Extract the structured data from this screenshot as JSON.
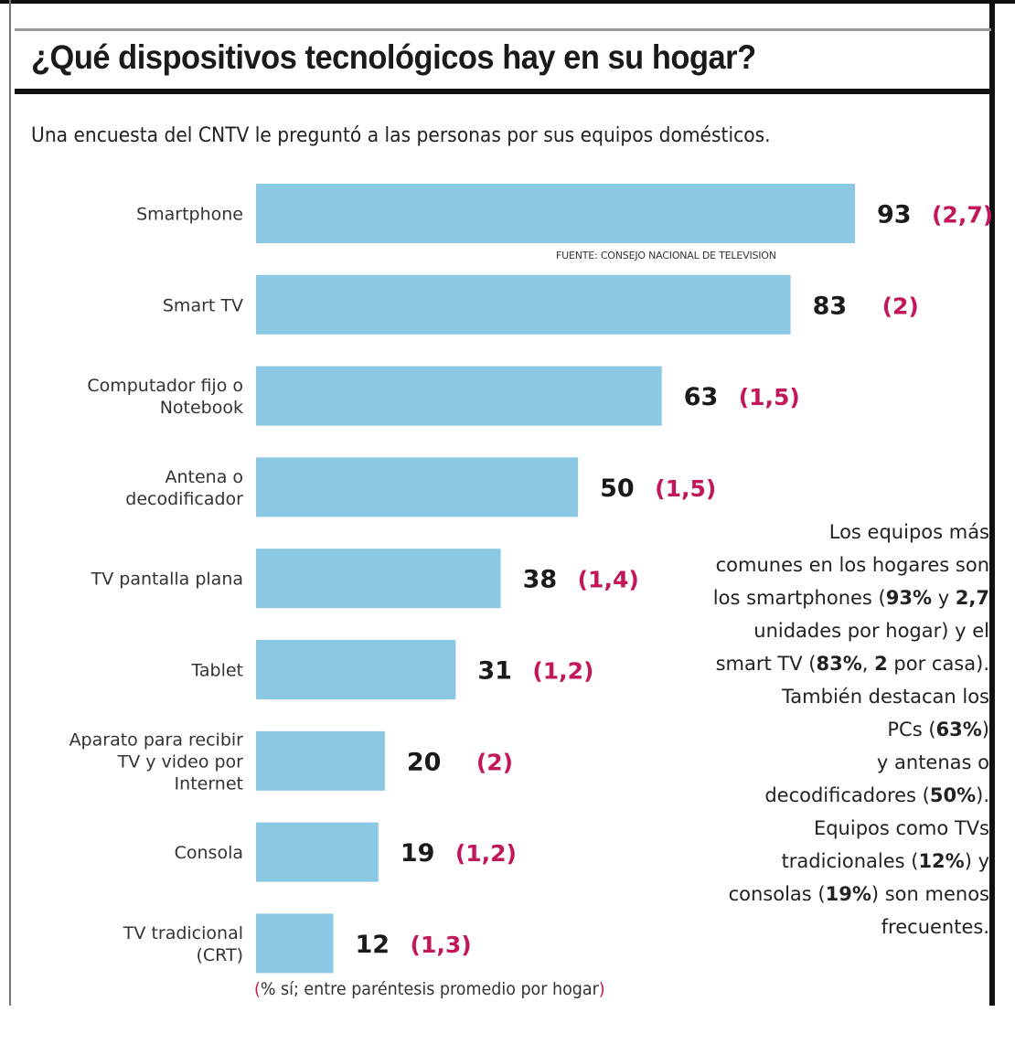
{
  "header": {
    "title": "¿Qué dispositivos tecnológicos hay en su hogar?",
    "subtitle": "Una encuesta del CNTV le preguntó a las personas por sus equipos domésticos."
  },
  "source": "FUENTE: CONSEJO NACIONAL DE TELEVISION",
  "note": {
    "open": "(",
    "text": "% sí; entre paréntesis promedio por hogar",
    "close": ")"
  },
  "commentary": [
    [
      {
        "t": "Los equipos más"
      }
    ],
    [
      {
        "t": "comunes en los hogares son"
      }
    ],
    [
      {
        "t": "los smartphones ("
      },
      {
        "t": "93%",
        "b": true
      },
      {
        "t": " y "
      },
      {
        "t": "2,7",
        "b": true
      }
    ],
    [
      {
        "t": "unidades por hogar) y el"
      }
    ],
    [
      {
        "t": "smart TV ("
      },
      {
        "t": "83%",
        "b": true
      },
      {
        "t": ", "
      },
      {
        "t": "2",
        "b": true
      },
      {
        "t": " por casa)."
      }
    ],
    [
      {
        "t": "También destacan los"
      }
    ],
    [
      {
        "t": "PCs ("
      },
      {
        "t": "63%",
        "b": true
      },
      {
        "t": ")"
      }
    ],
    [
      {
        "t": "y antenas o"
      }
    ],
    [
      {
        "t": "decodificadores ("
      },
      {
        "t": "50%",
        "b": true
      },
      {
        "t": ")."
      }
    ],
    [
      {
        "t": "Equipos como TVs"
      }
    ],
    [
      {
        "t": "tradicionales ("
      },
      {
        "t": "12%",
        "b": true
      },
      {
        "t": ") y"
      }
    ],
    [
      {
        "t": "consolas ("
      },
      {
        "t": "19%",
        "b": true
      },
      {
        "t": ") son menos"
      }
    ],
    [
      {
        "t": "frecuentes."
      }
    ]
  ],
  "colors": {
    "bar": "#8ac8e3",
    "value": "#1a1a1a",
    "average": "#c2185b",
    "label": "#333333"
  },
  "chart_data": {
    "type": "bar",
    "orientation": "horizontal",
    "title": "¿Qué dispositivos tecnológicos hay en su hogar?",
    "xlabel": "% sí",
    "ylabel": "",
    "xlim": [
      0,
      100
    ],
    "grid": false,
    "categories": [
      [
        "Smartphone"
      ],
      [
        "Smart TV"
      ],
      [
        "Computador fijo o",
        "Notebook"
      ],
      [
        "Antena o",
        "decodificador"
      ],
      [
        "TV pantalla plana"
      ],
      [
        "Tablet"
      ],
      [
        "Aparato para recibir",
        "TV y video por",
        "Internet"
      ],
      [
        "Consola"
      ],
      [
        "TV tradicional",
        "(CRT)"
      ]
    ],
    "series": [
      {
        "name": "% sí",
        "values": [
          93,
          83,
          63,
          50,
          38,
          31,
          20,
          19,
          12
        ]
      },
      {
        "name": "promedio por hogar",
        "values": [
          "2,7",
          "2",
          "1,5",
          "1,5",
          "1,4",
          "1,2",
          "2",
          "1,2",
          "1,3"
        ]
      }
    ]
  }
}
